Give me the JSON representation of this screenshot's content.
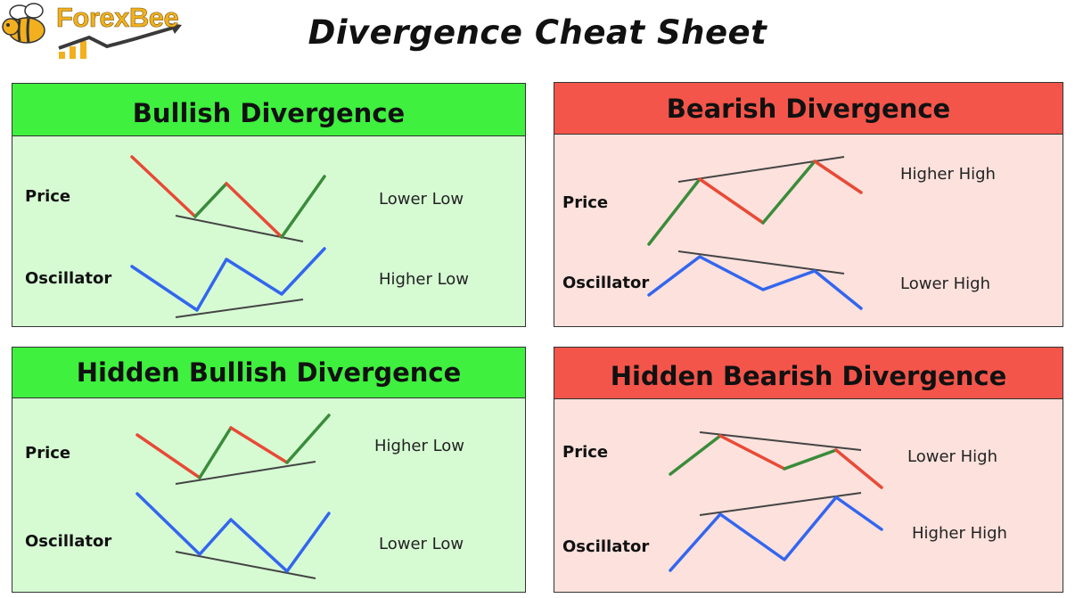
{
  "brand": {
    "name": "ForexBee",
    "logo_colors": {
      "gold": "#f2b01e",
      "arrow": "#3a3a3a"
    }
  },
  "title": "Divergence Cheat Sheet",
  "colors": {
    "bull_header": "#3ff03f",
    "bull_body": "#d6fbd3",
    "bear_header": "#f4554a",
    "bear_body": "#fce1dc",
    "up_line": "#3a8c3a",
    "down_line": "#e84a36",
    "osc_line": "#3366ee",
    "trend_line": "#444444"
  },
  "panels": {
    "bullish": {
      "title": "Bullish Divergence",
      "price_label": "Price",
      "osc_label": "Oscillator",
      "price_desc": "Lower Low",
      "osc_desc": "Higher Low"
    },
    "bearish": {
      "title": "Bearish Divergence",
      "price_label": "Price",
      "osc_label": "Oscillator",
      "price_desc": "Higher High",
      "osc_desc": "Lower High"
    },
    "hidden_bullish": {
      "title": "Hidden Bullish Divergence",
      "price_label": "Price",
      "osc_label": "Oscillator",
      "price_desc": "Higher Low",
      "osc_desc": "Lower Low"
    },
    "hidden_bearish": {
      "title": "Hidden Bearish Divergence",
      "price_label": "Price",
      "osc_label": "Oscillator",
      "price_desc": "Lower High",
      "osc_desc": "Higher High"
    }
  }
}
